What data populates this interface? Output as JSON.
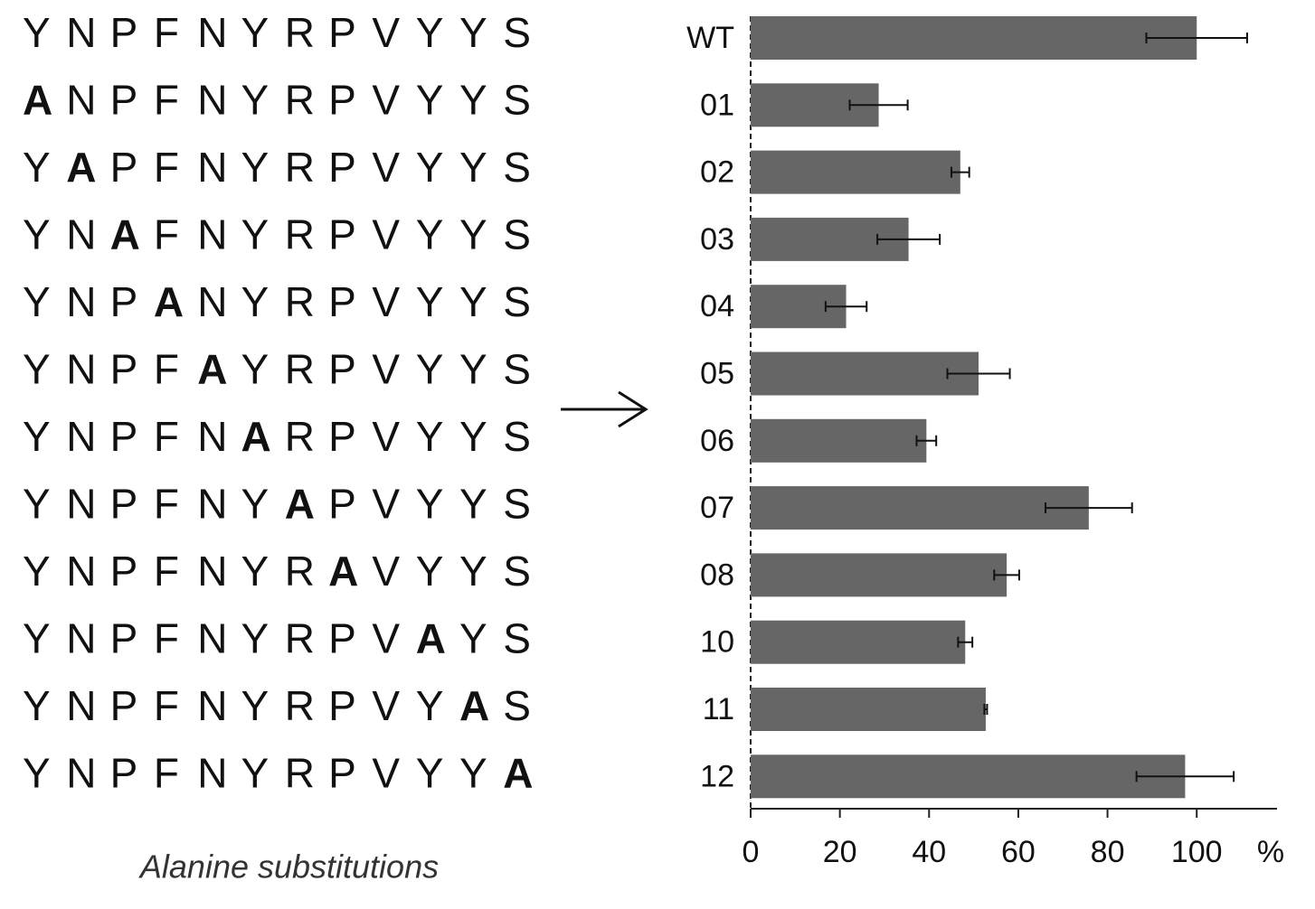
{
  "chart_data": {
    "type": "bar",
    "orientation": "horizontal",
    "sequences": [
      "YNPFNYRPVYYS",
      "ANPFNYRPVYYS",
      "YAPFNYRPVYYS",
      "YNAFNYRPVYYS",
      "YNPANYRPVYYS",
      "YNPFAYRPVYYS",
      "YNPFNARPVYYS",
      "YNPFNYAPVYYS",
      "YNPFNYRAVYYS",
      "YNPFNYRPVAYS",
      "YNPFNYRPVYAS",
      "YNPFNYRPVYYA"
    ],
    "highlight": "A",
    "caption": "Alanine substitutions",
    "categories": [
      "WT",
      "01",
      "02",
      "03",
      "04",
      "05",
      "06",
      "07",
      "08",
      "10",
      "11",
      "12"
    ],
    "values": [
      100,
      28.7,
      47,
      35.4,
      21.4,
      51.1,
      39.4,
      75.8,
      57.4,
      48.1,
      52.7,
      97.4
    ],
    "errors": [
      11.3,
      6.5,
      2,
      7,
      4.6,
      7,
      2.2,
      9.7,
      2.8,
      1.6,
      0.3,
      10.9
    ],
    "color": "#666666",
    "xlim": [
      0,
      118
    ],
    "xticks": [
      0,
      20,
      40,
      60,
      80,
      100
    ],
    "xunit": "%"
  }
}
